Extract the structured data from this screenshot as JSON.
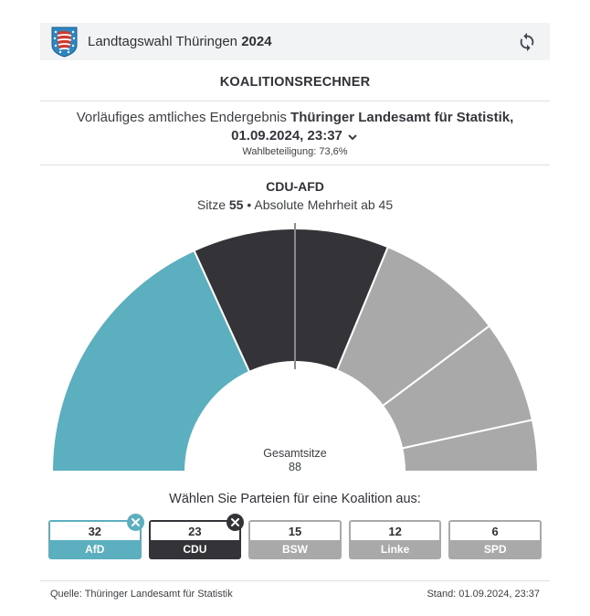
{
  "header": {
    "title": "Landtagswahl Thüringen ",
    "year": "2024",
    "coat_icon": "thuringia-coat-of-arms",
    "refresh_icon": "refresh"
  },
  "page_title": "KOALITIONSRECHNER",
  "result_info": {
    "prefix": "Vorläufiges amtliches Endergebnis ",
    "source_bold": "Thüringer Landesamt für Statistik,",
    "datetime": "01.09.2024, 23:37",
    "turnout": "Wahlbeteiligung: 73,6%"
  },
  "coalition": {
    "name": "CDU-AFD",
    "seats_prefix": "Sitze ",
    "seats": "55",
    "majority_suffix": " • Absolute Mehrheit ab 45"
  },
  "chart_data": {
    "type": "half-donut",
    "title": "CDU-AFD seat distribution",
    "total_label": "Gesamtsitze",
    "total_seats": "88",
    "majority_threshold": 45,
    "legend_position": "none",
    "series": [
      {
        "name": "AfD",
        "seats": 32,
        "color": "#5BAFBE"
      },
      {
        "name": "CDU",
        "seats": 23,
        "color": "#333338"
      },
      {
        "name": "BSW",
        "seats": 15,
        "color": "#A9A9A9"
      },
      {
        "name": "Linke",
        "seats": 12,
        "color": "#A9A9A9"
      },
      {
        "name": "SPD",
        "seats": 6,
        "color": "#A9A9A9"
      }
    ],
    "marker_color": "#8b8b8b"
  },
  "selector": {
    "prompt": "Wählen Sie Parteien für eine Koalition aus:",
    "parties": [
      {
        "name": "AfD",
        "seats": "32",
        "color": "#5BAFBE",
        "selected": true
      },
      {
        "name": "CDU",
        "seats": "23",
        "color": "#333338",
        "selected": true
      },
      {
        "name": "BSW",
        "seats": "15",
        "color": "#A9A9A9",
        "selected": false
      },
      {
        "name": "Linke",
        "seats": "12",
        "color": "#A9A9A9",
        "selected": false
      },
      {
        "name": "SPD",
        "seats": "6",
        "color": "#A9A9A9",
        "selected": false
      }
    ]
  },
  "footer": {
    "source": "Quelle: Thüringer Landesamt für Statistik",
    "stand": "Stand: 01.09.2024, 23:37"
  }
}
